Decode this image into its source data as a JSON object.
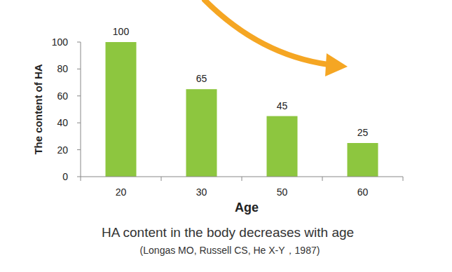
{
  "chart_data": {
    "type": "bar",
    "title": "HA content in the body decreases with age",
    "subtitle": "(Longas MO, Russell CS, He X-Y，1987)",
    "x_label": "Age",
    "y_label": "The content of HA",
    "categories": [
      "20",
      "30",
      "50",
      "60"
    ],
    "values": [
      100,
      65,
      45,
      25
    ],
    "color": "#8dc63f",
    "ylim": [
      0,
      100
    ],
    "yticks": [
      0,
      20,
      40,
      60,
      80,
      100
    ],
    "grid": false,
    "data_labels": true
  }
}
